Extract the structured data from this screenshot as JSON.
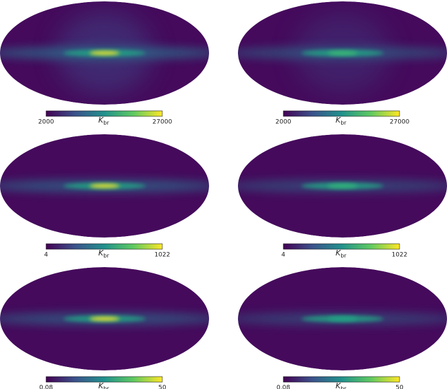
{
  "panels": [
    {
      "cbar_min": "2000",
      "cbar_max": "27000",
      "unit": "K",
      "unit_sub": "br"
    },
    {
      "cbar_min": "2000",
      "cbar_max": "27000",
      "unit": "K",
      "unit_sub": "br"
    },
    {
      "cbar_min": "4",
      "cbar_max": "1022",
      "unit": "K",
      "unit_sub": "br"
    },
    {
      "cbar_min": "4",
      "cbar_max": "1022",
      "unit": "K",
      "unit_sub": "br"
    },
    {
      "cbar_min": "0.08",
      "cbar_max": "50",
      "unit": "K",
      "unit_sub": "br"
    },
    {
      "cbar_min": "0.08",
      "cbar_max": "50",
      "unit": "K",
      "unit_sub": "br"
    }
  ]
}
